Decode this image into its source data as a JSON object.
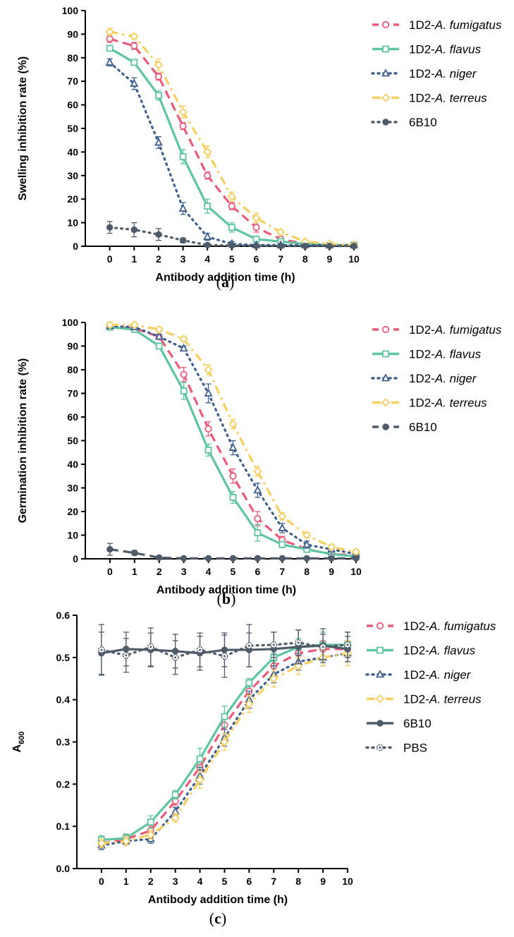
{
  "colors": {
    "fumigatus": "#ec5a77",
    "flavus": "#5dc59f",
    "niger": "#3f5f8f",
    "terreus": "#f6cf5e",
    "mab6B10": "#4f5b69",
    "pbs": "#4f5b69"
  },
  "legend_species": {
    "fumigatus": "fumigatus",
    "flavus": "flavus",
    "niger": "niger",
    "terreus": "terreus"
  },
  "chart_data": [
    {
      "type": "line",
      "panel_label": "a",
      "xlabel": "Antibody addition time (h)",
      "ylabel": "Swelling inhibition rate (%)",
      "xlim": [
        -1,
        10
      ],
      "ylim": [
        0,
        100
      ],
      "x_ticks": [
        "0",
        "1",
        "2",
        "3",
        "4",
        "5",
        "6",
        "7",
        "8",
        "9",
        "10"
      ],
      "y_ticks": [
        "0",
        "10",
        "20",
        "30",
        "40",
        "50",
        "60",
        "70",
        "80",
        "90",
        "100"
      ],
      "legend_position": "right",
      "x": [
        0,
        1,
        2,
        3,
        4,
        5,
        6,
        7,
        8,
        9,
        10
      ],
      "series": [
        {
          "key": "fumigatus",
          "name": "1D2-A. fumigatus",
          "line": "dashed",
          "marker": "circle",
          "values": [
            88,
            85,
            72,
            51,
            30,
            17,
            8,
            3,
            1,
            0.5,
            0.5
          ],
          "error": [
            1.5,
            1.5,
            1.5,
            1.5,
            1.5,
            1.5,
            2,
            1,
            0.5,
            0.5,
            0.5
          ]
        },
        {
          "key": "flavus",
          "name": "1D2-A. flavus",
          "line": "solid",
          "marker": "square",
          "values": [
            84,
            78,
            64,
            38,
            17,
            8,
            3,
            2,
            1,
            0.5,
            0.5
          ],
          "error": [
            1,
            1,
            2,
            3,
            3,
            2,
            1,
            1,
            0.5,
            0.5,
            0.5
          ]
        },
        {
          "key": "niger",
          "name": "1D2-A. niger",
          "line": "dotted",
          "marker": "triangle",
          "values": [
            78,
            69,
            44,
            16,
            4,
            1,
            0.5,
            0.5,
            0.5,
            0.5,
            0.5
          ],
          "error": [
            1.5,
            2.5,
            2.5,
            2.5,
            1.5,
            1,
            0.5,
            0.5,
            0.5,
            0.5,
            0.5
          ]
        },
        {
          "key": "terreus",
          "name": "1D2-A. terreus",
          "line": "dashdot",
          "marker": "diamond",
          "values": [
            91,
            89,
            77,
            57,
            40,
            21,
            12,
            6,
            2,
            1,
            0.5
          ],
          "error": [
            1.5,
            1,
            2.5,
            2.5,
            2.5,
            2,
            2,
            1,
            0.5,
            0.5,
            0.5
          ]
        },
        {
          "key": "mab6B10",
          "name": "6B10",
          "line": "dotted",
          "marker": "filled-circle",
          "values": [
            8,
            7,
            5,
            2.5,
            0.5,
            0.3,
            0.2,
            0.1,
            0.1,
            0.1,
            0.1
          ],
          "error": [
            2.5,
            3,
            2.5,
            1,
            0.5,
            0.3,
            0.2,
            0.1,
            0.1,
            0.1,
            0.1
          ]
        }
      ]
    },
    {
      "type": "line",
      "panel_label": "b",
      "xlabel": "Antibody addition time (h)",
      "ylabel": "Germination inhibition rate (%)",
      "xlim": [
        -1,
        10
      ],
      "ylim": [
        0,
        100
      ],
      "x_ticks": [
        "0",
        "1",
        "2",
        "3",
        "4",
        "5",
        "6",
        "7",
        "8",
        "9",
        "10"
      ],
      "y_ticks": [
        "0",
        "10",
        "20",
        "30",
        "40",
        "50",
        "60",
        "70",
        "80",
        "90",
        "100"
      ],
      "legend_position": "right",
      "x": [
        0,
        1,
        2,
        3,
        4,
        5,
        6,
        7,
        8,
        9,
        10
      ],
      "series": [
        {
          "key": "fumigatus",
          "name": "1D2-A. fumigatus",
          "line": "dashed",
          "marker": "circle",
          "values": [
            98,
            97.5,
            94,
            78,
            55,
            35,
            17,
            8,
            4,
            2,
            1.5
          ],
          "error": [
            1,
            1,
            1,
            3,
            3,
            3,
            3,
            1.5,
            1,
            1,
            1
          ]
        },
        {
          "key": "flavus",
          "name": "1D2-A. flavus",
          "line": "solid",
          "marker": "square",
          "values": [
            98,
            97,
            90,
            71,
            46,
            26,
            11,
            6,
            4,
            2,
            1
          ],
          "error": [
            1,
            1,
            1,
            3.5,
            2.5,
            2.5,
            3.5,
            1,
            0.5,
            0.5,
            0.5
          ]
        },
        {
          "key": "niger",
          "name": "1D2-A. niger",
          "line": "dotted",
          "marker": "triangle",
          "values": [
            98.5,
            98,
            94,
            89,
            70,
            47,
            29,
            13,
            6,
            4,
            2
          ],
          "error": [
            1,
            1,
            1,
            1,
            4,
            3,
            3,
            2,
            1.5,
            2,
            1
          ]
        },
        {
          "key": "terreus",
          "name": "1D2-A. terreus",
          "line": "dashdot",
          "marker": "diamond",
          "values": [
            99,
            99,
            97,
            93,
            80,
            57,
            37,
            18,
            10,
            5,
            3
          ],
          "error": [
            1,
            1,
            1,
            1,
            2,
            2,
            2,
            1.5,
            1,
            1,
            1
          ]
        },
        {
          "key": "mab6B10",
          "name": "6B10",
          "line": "dashed",
          "marker": "filled-circle",
          "values": [
            4,
            2.5,
            0.5,
            0.2,
            0.2,
            0.2,
            0.2,
            0.2,
            0.2,
            0.2,
            0.2
          ],
          "error": [
            2.5,
            1,
            0.5,
            0.2,
            0.2,
            0.2,
            0.2,
            0.2,
            0.2,
            0.2,
            0.2
          ]
        }
      ]
    },
    {
      "type": "line",
      "panel_label": "c",
      "xlabel": "Antibody addition time (h)",
      "ylabel": "A",
      "ylabel_sub": "600",
      "xlim": [
        -1,
        10
      ],
      "ylim": [
        0,
        0.6
      ],
      "x_ticks": [
        "0",
        "1",
        "2",
        "3",
        "4",
        "5",
        "6",
        "7",
        "8",
        "9",
        "10"
      ],
      "y_ticks": [
        "0.0",
        "0.1",
        "0.2",
        "0.3",
        "0.4",
        "0.5",
        "0.6"
      ],
      "legend_position": "right",
      "x": [
        0,
        1,
        2,
        3,
        4,
        5,
        6,
        7,
        8,
        9,
        10
      ],
      "series": [
        {
          "key": "fumigatus",
          "name": "1D2-A. fumigatus",
          "line": "dashed",
          "marker": "circle",
          "values": [
            0.06,
            0.07,
            0.09,
            0.16,
            0.24,
            0.34,
            0.42,
            0.48,
            0.51,
            0.52,
            0.52
          ],
          "error": [
            0.01,
            0.01,
            0.01,
            0.01,
            0.02,
            0.02,
            0.02,
            0.02,
            0.02,
            0.02,
            0.02
          ]
        },
        {
          "key": "flavus",
          "name": "1D2-A. flavus",
          "line": "solid",
          "marker": "square",
          "values": [
            0.068,
            0.072,
            0.11,
            0.175,
            0.26,
            0.36,
            0.44,
            0.5,
            0.525,
            0.53,
            0.53
          ],
          "error": [
            0.01,
            0.01,
            0.015,
            0.01,
            0.025,
            0.025,
            0.01,
            0.01,
            0.02,
            0.03,
            0.03
          ]
        },
        {
          "key": "niger",
          "name": "1D2-A. niger",
          "line": "dotted",
          "marker": "triangle",
          "values": [
            0.055,
            0.065,
            0.07,
            0.135,
            0.22,
            0.31,
            0.4,
            0.46,
            0.49,
            0.5,
            0.51
          ],
          "error": [
            0.01,
            0.01,
            0.01,
            0.01,
            0.02,
            0.02,
            0.02,
            0.02,
            0.02,
            0.02,
            0.02
          ]
        },
        {
          "key": "terreus",
          "name": "1D2-A. terreus",
          "line": "dashdot",
          "marker": "diamond",
          "values": [
            0.06,
            0.065,
            0.08,
            0.12,
            0.21,
            0.3,
            0.39,
            0.45,
            0.48,
            0.5,
            0.51
          ],
          "error": [
            0.01,
            0.01,
            0.01,
            0.01,
            0.02,
            0.02,
            0.02,
            0.02,
            0.02,
            0.02,
            0.03
          ]
        },
        {
          "key": "mab6B10",
          "name": "6B10",
          "line": "solid",
          "marker": "filled-circle",
          "values": [
            0.51,
            0.52,
            0.518,
            0.515,
            0.51,
            0.518,
            0.518,
            0.52,
            0.525,
            0.528,
            0.52
          ],
          "error": [
            0.05,
            0.04,
            0.04,
            0.04,
            0.04,
            0.04,
            0.04,
            0.04,
            0.04,
            0.04,
            0.03
          ]
        },
        {
          "key": "pbs",
          "name": "PBS",
          "line": "dotted",
          "marker": "half-circle",
          "values": [
            0.518,
            0.505,
            0.525,
            0.5,
            0.518,
            0.503,
            0.528,
            0.53,
            0.535,
            0.525,
            0.53
          ],
          "error": [
            0.06,
            0.04,
            0.045,
            0.04,
            0.04,
            0.05,
            0.05,
            0.03,
            0.03,
            0.03,
            0.03
          ]
        }
      ]
    }
  ]
}
